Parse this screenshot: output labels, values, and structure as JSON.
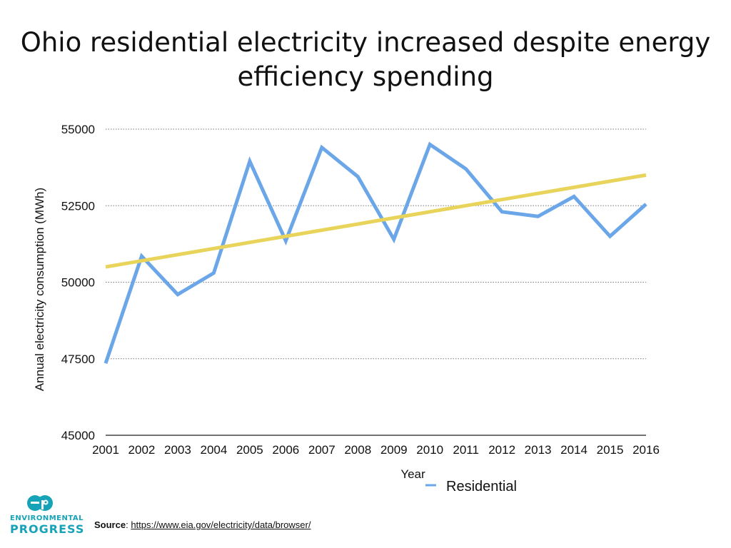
{
  "title_lines": [
    "Ohio residential electricity increased despite energy",
    "efficiency spending"
  ],
  "source": {
    "label": "Source",
    "separator": ": ",
    "url": "https://www.eia.gov/electricity/data/browser/"
  },
  "logo": {
    "line1": "ENVIRONMENTAL",
    "line2": "PROGRESS"
  },
  "colors": {
    "series": "#6aa6e8",
    "trend": "#e8d45a",
    "logo": "#16a3b7"
  },
  "chart_data": {
    "type": "line",
    "title": "Ohio residential electricity increased despite energy efficiency spending",
    "xlabel": "Year",
    "ylabel": "Annual electricity consumption (MWh)",
    "x": [
      "2001",
      "2002",
      "2003",
      "2004",
      "2005",
      "2006",
      "2007",
      "2008",
      "2009",
      "2010",
      "2011",
      "2012",
      "2013",
      "2014",
      "2015",
      "2016"
    ],
    "ylim": [
      45000,
      55000
    ],
    "yticks": [
      45000,
      47500,
      50000,
      52500,
      55000
    ],
    "grid": true,
    "legend": {
      "position": "bottom",
      "entries": [
        "Residential"
      ]
    },
    "series": [
      {
        "name": "Residential",
        "color": "#6aa6e8",
        "values": [
          47350,
          50850,
          49600,
          50300,
          53950,
          51350,
          54400,
          53450,
          51400,
          54500,
          53700,
          52300,
          52150,
          52800,
          51500,
          52550
        ]
      }
    ],
    "trendline": {
      "color": "#e8d45a",
      "start": 50500,
      "end": 53500
    }
  }
}
